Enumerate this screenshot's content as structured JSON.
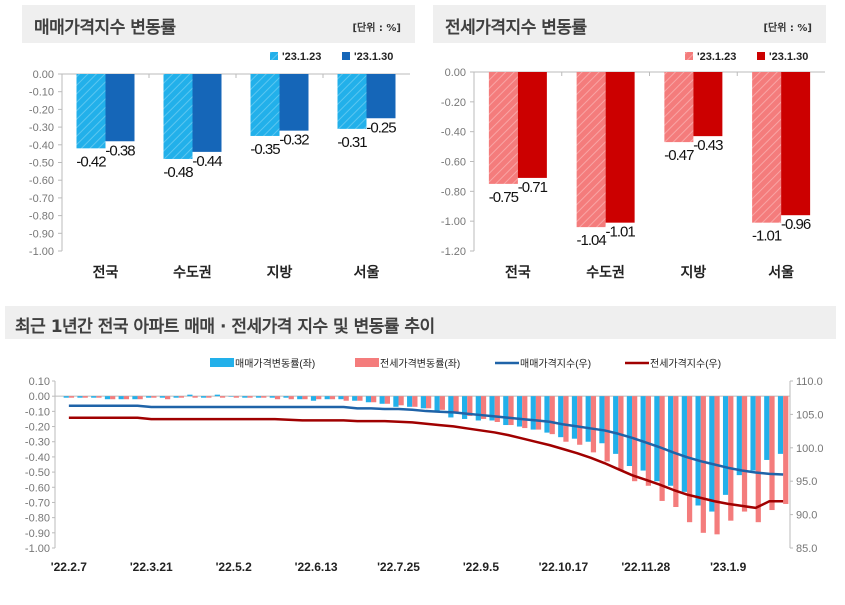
{
  "panels": {
    "sale": {
      "title": "매매가격지수 변동률",
      "unit": "[단위 : %]"
    },
    "jeonse": {
      "title": "전세가격지수 변동률",
      "unit": "[단위 : %]"
    },
    "trend": {
      "title": "최근 1년간 전국 아파트 매매 · 전세가격 지수 및 변동률 추이"
    }
  },
  "colors": {
    "sale_prev": "#22b0ea",
    "sale_curr": "#1566b8",
    "jeonse_prev": "#f47c7c",
    "jeonse_curr": "#cc0000",
    "sale_index_line": "#1f63a8",
    "jeonse_index_line": "#a00000",
    "header_bg": "#efefef"
  },
  "chart_data": [
    {
      "type": "bar",
      "categories": [
        "전국",
        "수도권",
        "지방",
        "서울"
      ],
      "series": [
        {
          "name": "'23.1.23",
          "values": [
            -0.42,
            -0.48,
            -0.35,
            -0.31
          ]
        },
        {
          "name": "'23.1.30",
          "values": [
            -0.38,
            -0.44,
            -0.32,
            -0.25
          ]
        }
      ],
      "ylim": [
        -1.0,
        0.0
      ],
      "yticks": [
        "0.00",
        "-0.10",
        "-0.20",
        "-0.30",
        "-0.40",
        "-0.50",
        "-0.60",
        "-0.70",
        "-0.80",
        "-0.90",
        "-1.00"
      ],
      "data_labels": [
        [
          "-0.42",
          "-0.48",
          "-0.35",
          "-0.31"
        ],
        [
          "-0.38",
          "-0.44",
          "-0.32",
          "-0.25"
        ]
      ],
      "legend": "top-right"
    },
    {
      "type": "bar",
      "categories": [
        "전국",
        "수도권",
        "지방",
        "서울"
      ],
      "series": [
        {
          "name": "'23.1.23",
          "values": [
            -0.75,
            -1.04,
            -0.47,
            -1.01
          ]
        },
        {
          "name": "'23.1.30",
          "values": [
            -0.71,
            -1.01,
            -0.43,
            -0.96
          ]
        }
      ],
      "ylim": [
        -1.2,
        0.0
      ],
      "yticks": [
        "0.00",
        "-0.20",
        "-0.40",
        "-0.60",
        "-0.80",
        "-1.00",
        "-1.20"
      ],
      "data_labels": [
        [
          "-0.75",
          "-1.04",
          "-0.47",
          "-1.01"
        ],
        [
          "-0.71",
          "-1.01",
          "-0.43",
          "-0.96"
        ]
      ],
      "legend": "top-right"
    },
    {
      "type": "bar+line",
      "x_tick_labels": [
        "'22.2.7",
        "'22.3.21",
        "'22.5.2",
        "'22.6.13",
        "'22.7.25",
        "'22.9.5",
        "'22.10.17",
        "'22.11.28",
        "'23.1.9"
      ],
      "x_tick_every_weeks": 6,
      "ylim_left": [
        -1.0,
        0.1
      ],
      "yticks_left": [
        "0.10",
        "0.00",
        "-0.10",
        "-0.20",
        "-0.30",
        "-0.40",
        "-0.50",
        "-0.60",
        "-0.70",
        "-0.80",
        "-0.90",
        "-1.00"
      ],
      "ylim_right": [
        85.0,
        110.0
      ],
      "yticks_right": [
        "110.0",
        "105.0",
        "100.0",
        "95.0",
        "90.0",
        "85.0"
      ],
      "legend": "top",
      "series": [
        {
          "name": "매매가격변동률(좌)",
          "axis": "left",
          "kind": "bar",
          "values": [
            -0.01,
            -0.01,
            -0.01,
            -0.02,
            -0.02,
            -0.02,
            -0.01,
            -0.01,
            -0.01,
            0.01,
            -0.01,
            0.01,
            0.0,
            -0.01,
            -0.01,
            -0.01,
            -0.01,
            -0.02,
            -0.03,
            -0.02,
            -0.02,
            -0.03,
            -0.04,
            -0.05,
            -0.07,
            -0.07,
            -0.08,
            -0.1,
            -0.14,
            -0.15,
            -0.16,
            -0.16,
            -0.19,
            -0.2,
            -0.22,
            -0.24,
            -0.27,
            -0.28,
            -0.3,
            -0.31,
            -0.38,
            -0.46,
            -0.49,
            -0.56,
            -0.59,
            -0.63,
            -0.72,
            -0.76,
            -0.65,
            -0.52,
            -0.49,
            -0.42,
            -0.38
          ]
        },
        {
          "name": "전세가격변동률(좌)",
          "axis": "left",
          "kind": "bar",
          "values": [
            -0.01,
            -0.01,
            -0.01,
            -0.02,
            -0.02,
            -0.02,
            -0.01,
            -0.02,
            -0.01,
            -0.01,
            -0.01,
            -0.01,
            -0.01,
            -0.01,
            -0.01,
            -0.02,
            -0.02,
            -0.02,
            -0.02,
            -0.02,
            -0.03,
            -0.03,
            -0.04,
            -0.05,
            -0.06,
            -0.07,
            -0.08,
            -0.09,
            -0.11,
            -0.13,
            -0.15,
            -0.17,
            -0.19,
            -0.21,
            -0.22,
            -0.25,
            -0.3,
            -0.32,
            -0.37,
            -0.43,
            -0.49,
            -0.56,
            -0.59,
            -0.69,
            -0.73,
            -0.83,
            -0.9,
            -0.91,
            -0.82,
            -0.76,
            -0.83,
            -0.75,
            -0.71
          ]
        },
        {
          "name": "매매가격지수(우)",
          "axis": "right",
          "kind": "line",
          "values": [
            106.3,
            106.3,
            106.3,
            106.3,
            106.3,
            106.3,
            106.1,
            106.1,
            106.1,
            106.1,
            106.1,
            106.1,
            106.1,
            106.1,
            106.1,
            106.1,
            106.1,
            106.1,
            106.1,
            106.1,
            106.1,
            105.9,
            105.9,
            105.8,
            105.8,
            105.7,
            105.5,
            105.4,
            105.3,
            105.1,
            104.9,
            104.7,
            104.5,
            104.3,
            104.1,
            103.9,
            103.5,
            103.2,
            102.9,
            102.6,
            102.1,
            101.5,
            100.8,
            100.1,
            99.3,
            98.6,
            98.0,
            97.5,
            97.0,
            96.6,
            96.3,
            96.1,
            96.0
          ]
        },
        {
          "name": "전세가격지수(우)",
          "axis": "right",
          "kind": "line",
          "values": [
            104.5,
            104.5,
            104.5,
            104.5,
            104.5,
            104.5,
            104.3,
            104.3,
            104.3,
            104.3,
            104.3,
            104.3,
            104.3,
            104.3,
            104.3,
            104.3,
            104.2,
            104.1,
            104.1,
            104.1,
            104.1,
            104.0,
            104.0,
            104.0,
            103.9,
            103.8,
            103.6,
            103.4,
            103.2,
            102.9,
            102.6,
            102.3,
            101.9,
            101.4,
            100.9,
            100.4,
            99.8,
            99.2,
            98.5,
            97.7,
            96.8,
            95.9,
            95.2,
            94.5,
            93.7,
            93.0,
            92.5,
            92.0,
            91.6,
            91.3,
            91.0,
            92.0,
            92.0
          ]
        }
      ]
    }
  ]
}
